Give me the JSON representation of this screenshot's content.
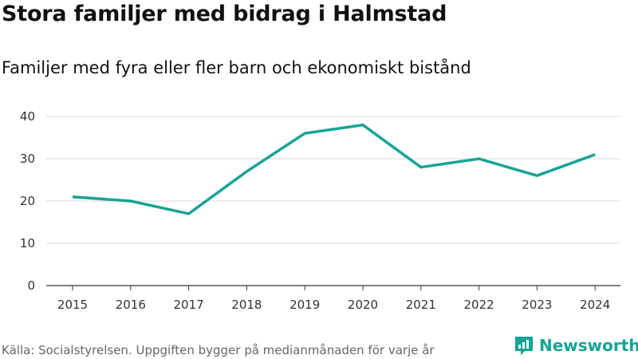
{
  "title": "Stora familjer med bidrag i Halmstad",
  "subtitle": "Familjer med fyra eller fler barn och ekonomiskt bistånd",
  "source": "Källa: Socialstyrelsen. Uppgiften bygger på medianmånaden för varje år",
  "brand": {
    "name": "Newsworthy",
    "icon": "newsworthy-logo-icon"
  },
  "colors": {
    "line": "#17a396",
    "grid": "#d9d9d9",
    "axis": "#333333",
    "brand": "#17a396"
  },
  "chart_data": {
    "type": "line",
    "title": "Stora familjer med bidrag i Halmstad",
    "subtitle": "Familjer med fyra eller fler barn och ekonomiskt bistånd",
    "xlabel": "",
    "ylabel": "",
    "x": [
      "2015",
      "2016",
      "2017",
      "2018",
      "2019",
      "2020",
      "2021",
      "2022",
      "2023",
      "2024"
    ],
    "series": [
      {
        "name": "Familjer med fyra eller fler barn och ekonomiskt bistånd",
        "values": [
          21,
          20,
          17,
          27,
          36,
          38,
          28,
          30,
          26,
          31
        ]
      }
    ],
    "ylim": [
      0,
      40
    ],
    "yticks": [
      0,
      10,
      20,
      30,
      40
    ],
    "grid": true,
    "legend": "none"
  }
}
